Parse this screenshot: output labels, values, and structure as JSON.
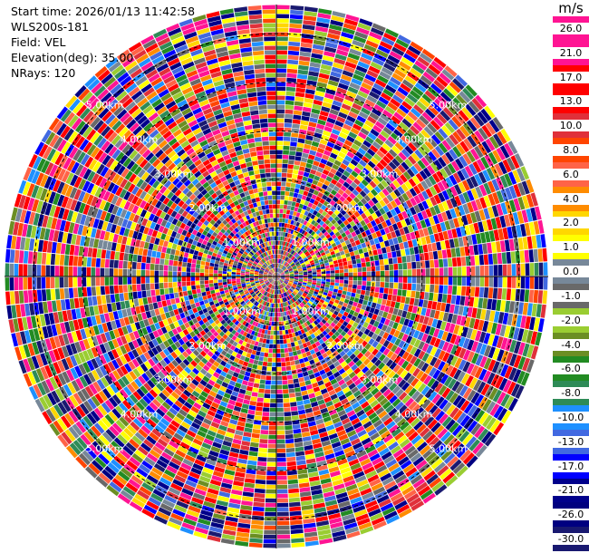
{
  "header": {
    "start_time_label": "Start time:",
    "start_time_value": "2026/01/13 11:42:58",
    "instrument": "WLS200s-181",
    "field_label": "Field:",
    "field_value": "VEL",
    "elevation_label": "Elevation(deg):",
    "elevation_value": "35.00",
    "nrays_label": "NRays:",
    "nrays_value": "120"
  },
  "colorbar": {
    "unit": "m/s",
    "labels": [
      "26.0",
      "21.0",
      "17.0",
      "13.0",
      "10.0",
      "8.0",
      "6.0",
      "4.0",
      "2.0",
      "1.0",
      "0.0",
      "-1.0",
      "-2.0",
      "-4.0",
      "-6.0",
      "-8.0",
      "-10.0",
      "-13.0",
      "-17.0",
      "-21.0",
      "-26.0",
      "-30.0"
    ],
    "colors": [
      "#ff1493",
      "#ff1493",
      "#ff0000",
      "#ff0000",
      "#e0303a",
      "#ff4500",
      "#ff6347",
      "#ff8c00",
      "#ffd700",
      "#ffff00",
      "#778899",
      "#696969",
      "#9acd32",
      "#6b8e23",
      "#228b22",
      "#2e8b57",
      "#1e90ff",
      "#4169e1",
      "#0000ff",
      "#00008b",
      "#000080",
      "#191970"
    ]
  },
  "chart_data": {
    "type": "heatmap",
    "subtype": "ppi-polar",
    "field": "VEL",
    "unit": "m/s",
    "nrays": 120,
    "elevation_deg": 35.0,
    "range_rings_km": [
      1.0,
      2.0,
      3.0,
      4.0,
      5.0
    ],
    "range_ring_labels": [
      "1.00km",
      "2.00km",
      "3.00km",
      "4.00km",
      "5.00km"
    ],
    "vmin": -30.0,
    "vmax": 26.0,
    "color_levels": [
      26.0,
      21.0,
      17.0,
      13.0,
      10.0,
      8.0,
      6.0,
      4.0,
      2.0,
      1.0,
      0.0,
      -1.0,
      -2.0,
      -4.0,
      -6.0,
      -8.0,
      -10.0,
      -13.0,
      -17.0,
      -21.0,
      -26.0,
      -30.0
    ]
  }
}
